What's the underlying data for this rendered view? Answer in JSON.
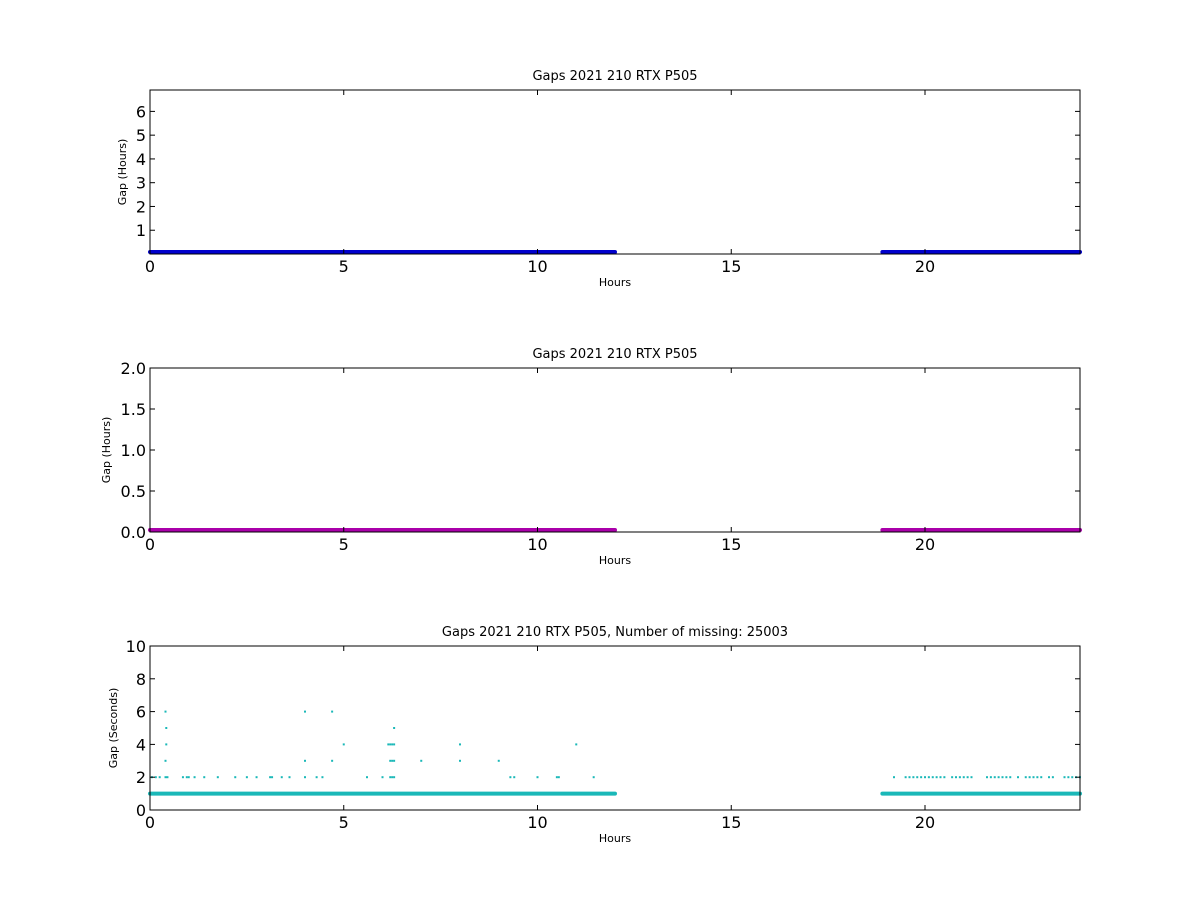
{
  "chart_data": [
    {
      "type": "scatter",
      "title": "Gaps 2021 210 RTX  P505",
      "xlabel": "Hours",
      "ylabel": "Gap (Hours)",
      "xlim": [
        0,
        24
      ],
      "ylim": [
        0,
        6.9
      ],
      "xticks": [
        "0",
        "5",
        "10",
        "15",
        "20"
      ],
      "yticks": [
        "1",
        "2",
        "3",
        "4",
        "5",
        "6"
      ],
      "grid": false,
      "series": [
        {
          "color": "#0000cc",
          "segments": [
            [
              0,
              12.0
            ],
            [
              18.9,
              24
            ]
          ],
          "y_value": 0.0
        }
      ]
    },
    {
      "type": "scatter",
      "title": "Gaps 2021 210 RTX  P505",
      "xlabel": "Hours",
      "ylabel": "Gap (Hours)",
      "xlim": [
        0,
        24
      ],
      "ylim": [
        0,
        2.0
      ],
      "xticks": [
        "0",
        "5",
        "10",
        "15",
        "20"
      ],
      "yticks": [
        "0.0",
        "0.5",
        "1.0",
        "1.5",
        "2.0"
      ],
      "grid": false,
      "series": [
        {
          "color": "#aa00aa",
          "segments": [
            [
              0,
              12.0
            ],
            [
              18.9,
              24
            ]
          ],
          "y_value": 0.0
        }
      ]
    },
    {
      "type": "scatter",
      "title": "Gaps 2021 210 RTX  P505, Number of missing: 25003",
      "xlabel": "Hours",
      "ylabel": "Gap (Seconds)",
      "xlim": [
        0,
        24
      ],
      "ylim": [
        0,
        10
      ],
      "xticks": [
        "0",
        "5",
        "10",
        "15",
        "20"
      ],
      "yticks": [
        "0",
        "2",
        "4",
        "6",
        "8",
        "10"
      ],
      "grid": false,
      "series": [
        {
          "color": "#1ab8b8",
          "segments": [
            [
              0,
              12.0
            ],
            [
              18.9,
              24
            ]
          ],
          "y_value": 1,
          "points": [
            [
              0.05,
              2
            ],
            [
              0.15,
              2
            ],
            [
              0.25,
              2
            ],
            [
              0.4,
              6
            ],
            [
              0.4,
              3
            ],
            [
              0.4,
              2
            ],
            [
              0.42,
              5
            ],
            [
              0.42,
              4
            ],
            [
              0.45,
              2
            ],
            [
              0.85,
              2
            ],
            [
              0.95,
              2
            ],
            [
              1.0,
              2
            ],
            [
              1.15,
              2
            ],
            [
              1.4,
              2
            ],
            [
              1.75,
              2
            ],
            [
              2.2,
              2
            ],
            [
              2.5,
              2
            ],
            [
              2.75,
              2
            ],
            [
              3.1,
              2
            ],
            [
              3.15,
              2
            ],
            [
              3.4,
              2
            ],
            [
              3.6,
              2
            ],
            [
              4.0,
              6
            ],
            [
              4.0,
              3
            ],
            [
              4.0,
              2
            ],
            [
              4.3,
              2
            ],
            [
              4.45,
              2
            ],
            [
              4.7,
              6
            ],
            [
              4.7,
              3
            ],
            [
              5.0,
              4
            ],
            [
              5.6,
              2
            ],
            [
              6.0,
              2
            ],
            [
              6.15,
              4
            ],
            [
              6.2,
              4
            ],
            [
              6.2,
              3
            ],
            [
              6.2,
              2
            ],
            [
              6.25,
              4
            ],
            [
              6.25,
              3
            ],
            [
              6.25,
              2
            ],
            [
              6.3,
              5
            ],
            [
              6.3,
              4
            ],
            [
              6.3,
              3
            ],
            [
              6.3,
              2
            ],
            [
              7.0,
              3
            ],
            [
              8.0,
              4
            ],
            [
              8.0,
              3
            ],
            [
              9.0,
              3
            ],
            [
              9.3,
              2
            ],
            [
              9.4,
              2
            ],
            [
              10.0,
              2
            ],
            [
              10.5,
              2
            ],
            [
              10.55,
              2
            ],
            [
              11.0,
              4
            ],
            [
              11.45,
              2
            ],
            [
              19.2,
              2
            ],
            [
              19.5,
              2
            ],
            [
              19.6,
              2
            ],
            [
              19.7,
              2
            ],
            [
              19.8,
              2
            ],
            [
              19.9,
              2
            ],
            [
              20.0,
              2
            ],
            [
              20.1,
              2
            ],
            [
              20.2,
              2
            ],
            [
              20.3,
              2
            ],
            [
              20.4,
              2
            ],
            [
              20.5,
              2
            ],
            [
              20.7,
              2
            ],
            [
              20.8,
              2
            ],
            [
              20.9,
              2
            ],
            [
              21.0,
              2
            ],
            [
              21.1,
              2
            ],
            [
              21.2,
              2
            ],
            [
              21.6,
              2
            ],
            [
              21.7,
              2
            ],
            [
              21.8,
              2
            ],
            [
              21.9,
              2
            ],
            [
              22.0,
              2
            ],
            [
              22.1,
              2
            ],
            [
              22.2,
              2
            ],
            [
              22.4,
              2
            ],
            [
              22.6,
              2
            ],
            [
              22.7,
              2
            ],
            [
              22.8,
              2
            ],
            [
              22.9,
              2
            ],
            [
              23.0,
              2
            ],
            [
              23.2,
              2
            ],
            [
              23.3,
              2
            ],
            [
              23.6,
              2
            ],
            [
              23.7,
              2
            ],
            [
              23.8,
              2
            ],
            [
              23.9,
              2
            ],
            [
              24.0,
              2
            ]
          ]
        }
      ]
    }
  ]
}
